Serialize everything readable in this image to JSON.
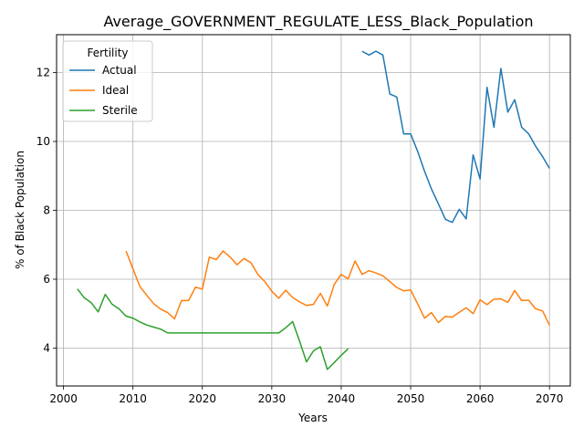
{
  "chart_data": {
    "type": "line",
    "title": "Average_GOVERNMENT_REGULATE_LESS_Black_Population",
    "xlabel": "Years",
    "ylabel": "% of Black Population",
    "xlim": [
      1999,
      2073
    ],
    "ylim": [
      2.9,
      13.1
    ],
    "xticks": [
      2000,
      2010,
      2020,
      2030,
      2040,
      2050,
      2060,
      2070
    ],
    "yticks": [
      4,
      6,
      8,
      10,
      12
    ],
    "grid": true,
    "legend": {
      "title": "Fertility",
      "placement": "top-left"
    },
    "series": [
      {
        "name": "Actual",
        "color": "#1f77b4",
        "x": [
          2043,
          2044,
          2045,
          2046,
          2047,
          2048,
          2049,
          2050,
          2051,
          2052,
          2053,
          2054,
          2055,
          2056,
          2057,
          2058,
          2059,
          2060,
          2061,
          2062,
          2063,
          2064,
          2065,
          2066,
          2067,
          2068,
          2069,
          2070
        ],
        "values": [
          12.62,
          12.51,
          12.62,
          12.51,
          11.38,
          11.29,
          10.22,
          10.22,
          9.72,
          9.14,
          8.62,
          8.19,
          7.74,
          7.65,
          8.03,
          7.75,
          9.61,
          8.91,
          11.57,
          10.41,
          12.12,
          10.85,
          11.21,
          10.41,
          10.22,
          9.86,
          9.56,
          9.22
        ]
      },
      {
        "name": "Ideal",
        "color": "#ff7f0e",
        "x": [
          2009,
          2010,
          2011,
          2012,
          2013,
          2014,
          2015,
          2016,
          2017,
          2018,
          2019,
          2020,
          2021,
          2022,
          2023,
          2024,
          2025,
          2026,
          2027,
          2028,
          2029,
          2030,
          2031,
          2032,
          2033,
          2034,
          2035,
          2036,
          2037,
          2038,
          2039,
          2040,
          2041,
          2042,
          2043,
          2044,
          2045,
          2046,
          2047,
          2048,
          2049,
          2050,
          2051,
          2052,
          2053,
          2054,
          2055,
          2056,
          2057,
          2058,
          2059,
          2060,
          2061,
          2062,
          2063,
          2064,
          2065,
          2066,
          2067,
          2068,
          2069,
          2070
        ],
        "values": [
          6.82,
          6.3,
          5.79,
          5.53,
          5.29,
          5.13,
          5.03,
          4.85,
          5.38,
          5.38,
          5.77,
          5.71,
          6.64,
          6.57,
          6.82,
          6.64,
          6.42,
          6.6,
          6.48,
          6.14,
          5.93,
          5.65,
          5.45,
          5.68,
          5.47,
          5.34,
          5.24,
          5.27,
          5.59,
          5.22,
          5.85,
          6.14,
          6.01,
          6.53,
          6.14,
          6.25,
          6.18,
          6.1,
          5.93,
          5.76,
          5.66,
          5.69,
          5.29,
          4.87,
          5.03,
          4.74,
          4.92,
          4.9,
          5.04,
          5.17,
          5.0,
          5.4,
          5.26,
          5.42,
          5.43,
          5.33,
          5.67,
          5.38,
          5.39,
          5.14,
          5.08,
          4.66
        ]
      },
      {
        "name": "Sterile",
        "color": "#2ca02c",
        "x": [
          2002,
          2003,
          2004,
          2005,
          2006,
          2007,
          2008,
          2009,
          2010,
          2011,
          2012,
          2013,
          2014,
          2015,
          2016,
          2017,
          2018,
          2019,
          2020,
          2021,
          2022,
          2023,
          2024,
          2025,
          2026,
          2027,
          2028,
          2029,
          2030,
          2031,
          2032,
          2033,
          2034,
          2035,
          2036,
          2037,
          2038,
          2039,
          2040,
          2041
        ],
        "values": [
          5.72,
          5.46,
          5.32,
          5.05,
          5.56,
          5.27,
          5.14,
          4.93,
          4.87,
          4.76,
          4.67,
          4.61,
          4.55,
          4.44,
          4.44,
          4.44,
          4.44,
          4.44,
          4.44,
          4.44,
          4.44,
          4.44,
          4.44,
          4.44,
          4.44,
          4.44,
          4.44,
          4.44,
          4.44,
          4.44,
          4.59,
          4.77,
          4.2,
          3.6,
          3.92,
          4.04,
          3.38,
          3.58,
          3.79,
          3.98
        ]
      }
    ]
  }
}
